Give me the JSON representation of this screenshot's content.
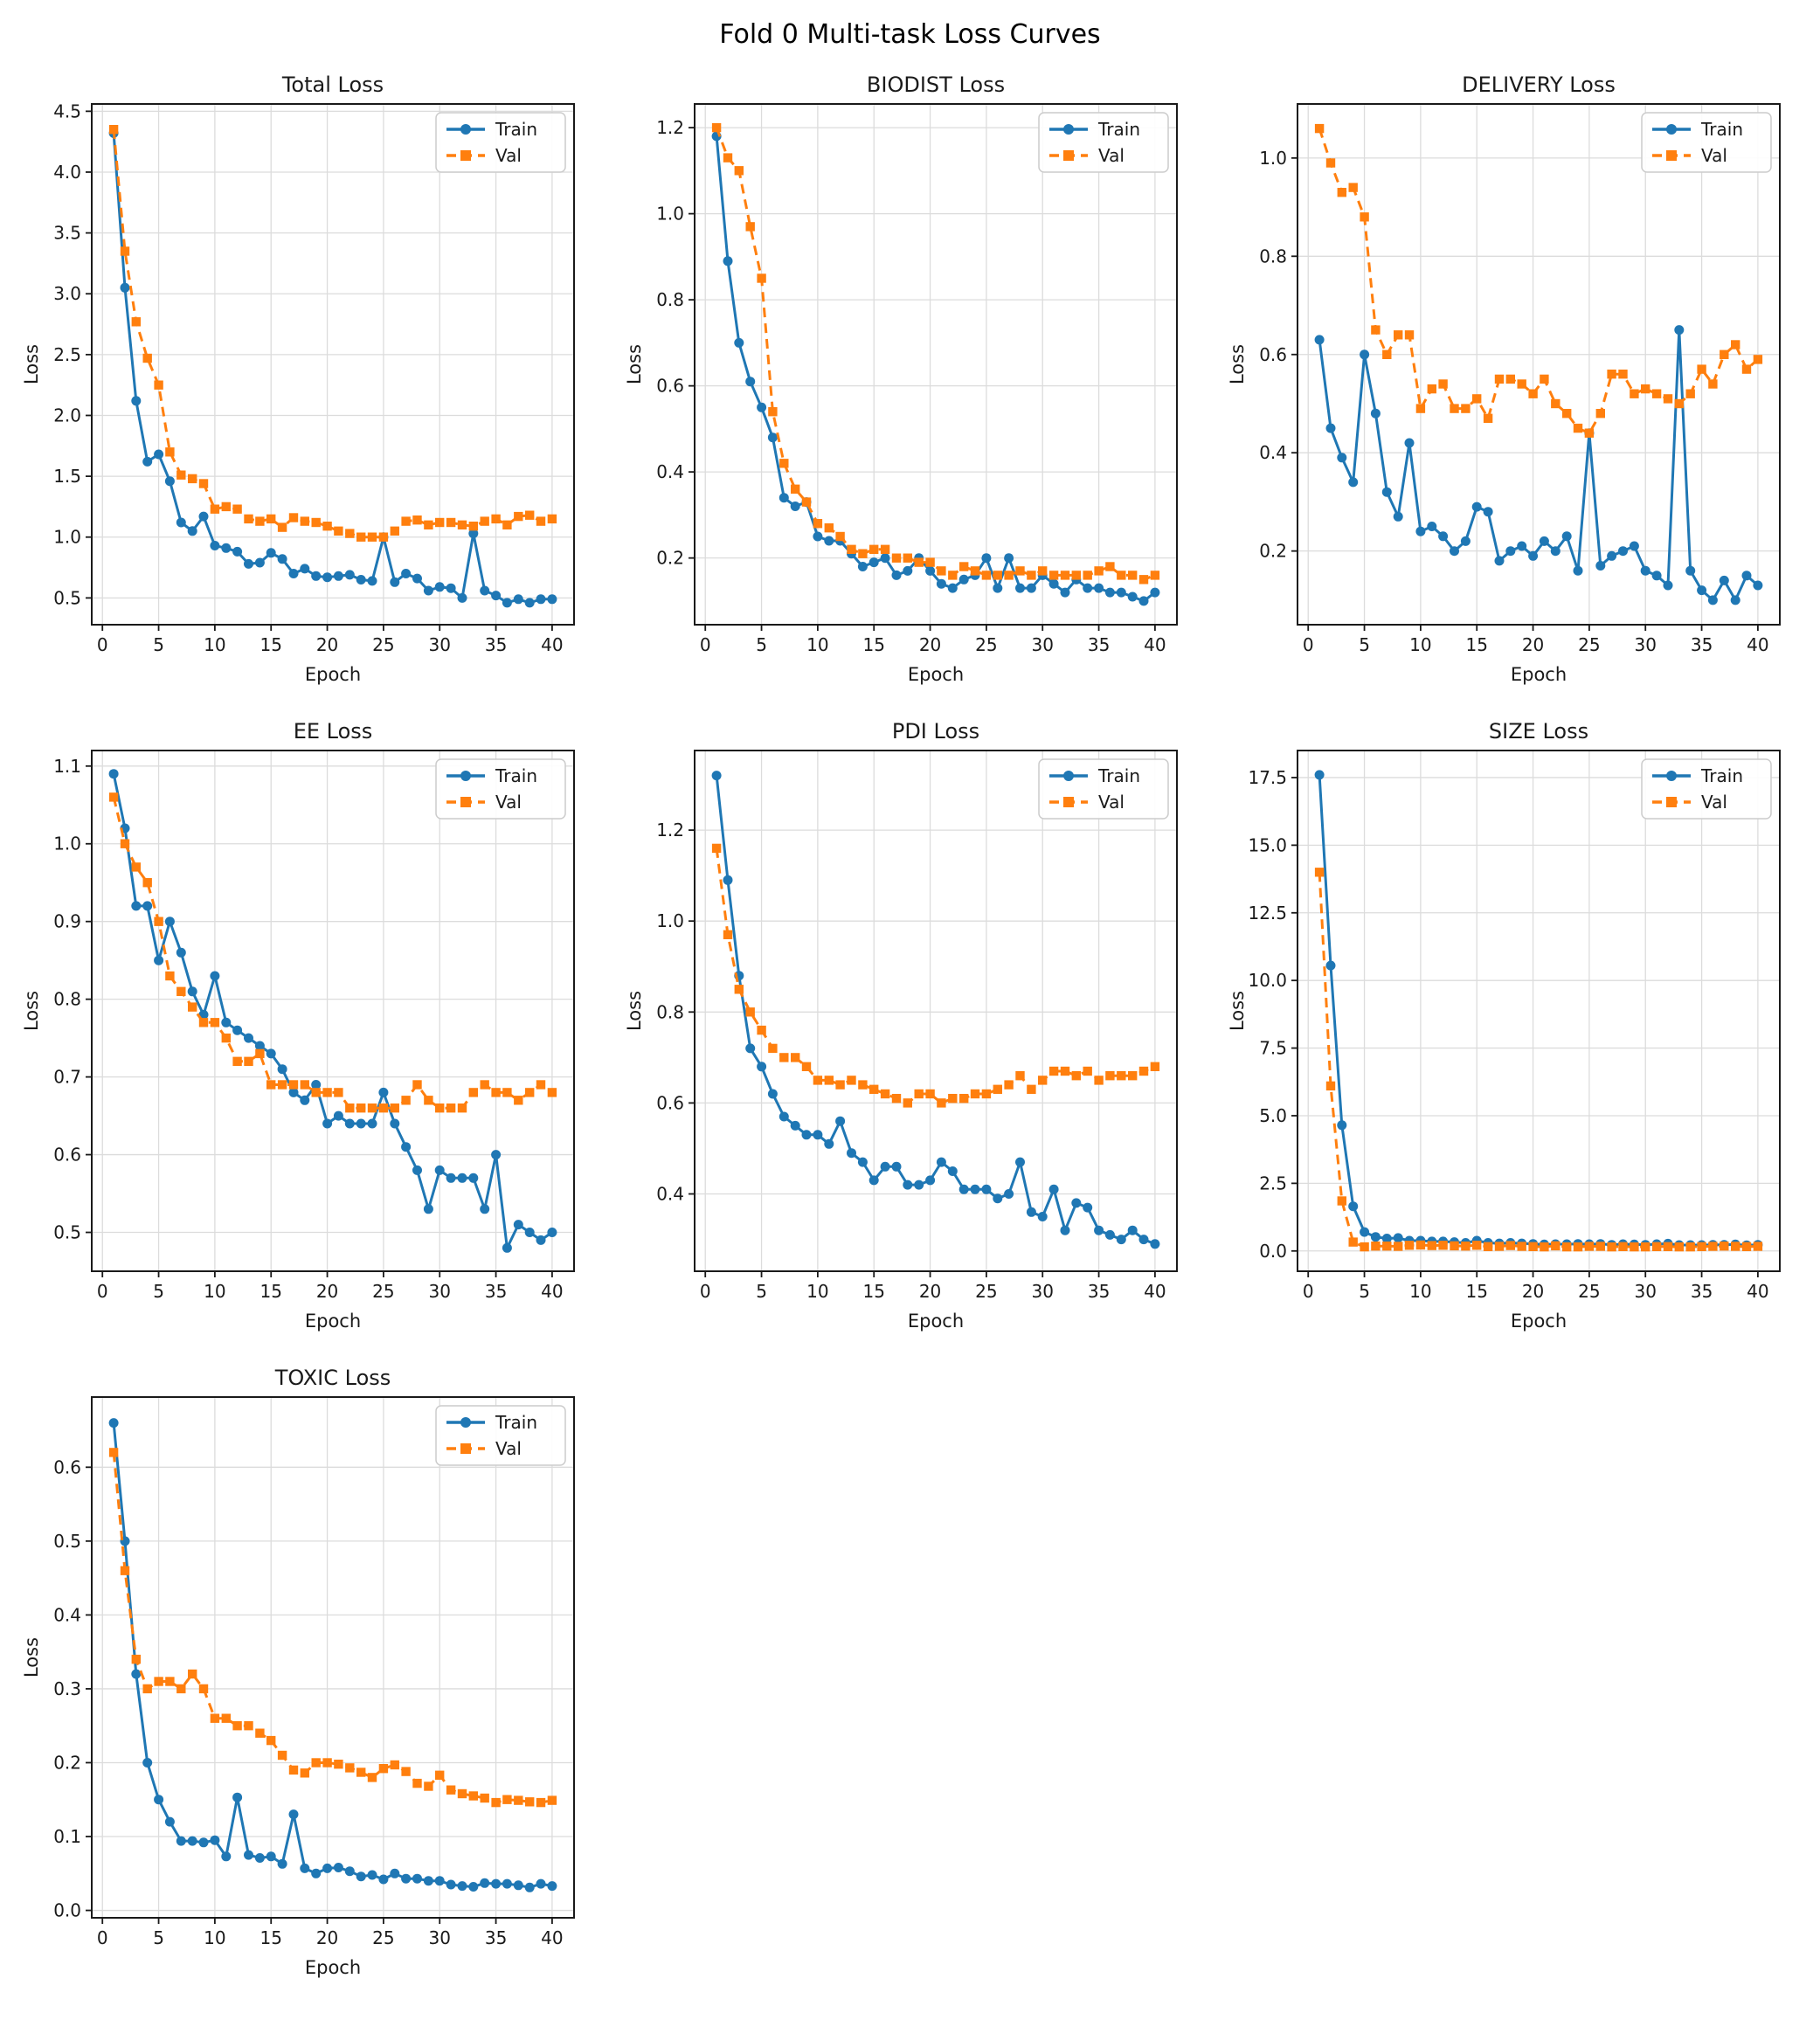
{
  "page_title": "Fold 0 Multi-task Loss Curves",
  "legend": {
    "train": "Train",
    "val": "Val"
  },
  "colors": {
    "train": "#1f77b4",
    "val": "#ff7f0e",
    "grid": "#dcdcdc",
    "spine": "#1a1a1a",
    "legend_border": "#cccccc",
    "background": "#ffffff"
  },
  "axis_shared": {
    "xlabel": "Epoch",
    "ylabel": "Loss",
    "xticks": [
      0,
      5,
      10,
      15,
      20,
      25,
      30,
      35,
      40
    ],
    "xtick_labels": [
      "0",
      "5",
      "10",
      "15",
      "20",
      "25",
      "30",
      "35",
      "40"
    ],
    "xlim": [
      -0.95,
      41.95
    ],
    "legend_position": "upper right",
    "grid": true
  },
  "epochs": [
    1,
    2,
    3,
    4,
    5,
    6,
    7,
    8,
    9,
    10,
    11,
    12,
    13,
    14,
    15,
    16,
    17,
    18,
    19,
    20,
    21,
    22,
    23,
    24,
    25,
    26,
    27,
    28,
    29,
    30,
    31,
    32,
    33,
    34,
    35,
    36,
    37,
    38,
    39,
    40
  ],
  "chart_data": [
    {
      "type": "line",
      "title": "Total Loss",
      "xlabel": "Epoch",
      "ylabel": "Loss",
      "ylim": [
        0.28,
        4.56
      ],
      "yticks": [
        0.5,
        1.0,
        1.5,
        2.0,
        2.5,
        3.0,
        3.5,
        4.0,
        4.5
      ],
      "ytick_labels": [
        "0.5",
        "1.0",
        "1.5",
        "2.0",
        "2.5",
        "3.0",
        "3.5",
        "4.0",
        "4.5"
      ],
      "series": [
        {
          "name": "Train",
          "values": [
            4.32,
            3.05,
            2.12,
            1.62,
            1.68,
            1.46,
            1.12,
            1.05,
            1.17,
            0.93,
            0.91,
            0.88,
            0.78,
            0.79,
            0.87,
            0.82,
            0.7,
            0.74,
            0.68,
            0.67,
            0.68,
            0.69,
            0.65,
            0.64,
            1.0,
            0.63,
            0.7,
            0.66,
            0.56,
            0.59,
            0.58,
            0.5,
            1.03,
            0.56,
            0.52,
            0.46,
            0.49,
            0.46,
            0.49,
            0.49
          ]
        },
        {
          "name": "Val",
          "values": [
            4.35,
            3.35,
            2.77,
            2.47,
            2.25,
            1.7,
            1.51,
            1.48,
            1.44,
            1.23,
            1.25,
            1.23,
            1.15,
            1.13,
            1.15,
            1.08,
            1.16,
            1.13,
            1.12,
            1.09,
            1.05,
            1.03,
            1.0,
            1.0,
            1.0,
            1.05,
            1.13,
            1.14,
            1.1,
            1.12,
            1.12,
            1.1,
            1.09,
            1.13,
            1.15,
            1.1,
            1.17,
            1.18,
            1.13,
            1.15
          ]
        }
      ]
    },
    {
      "type": "line",
      "title": "BIODIST Loss",
      "xlabel": "Epoch",
      "ylabel": "Loss",
      "ylim": [
        0.045,
        1.255
      ],
      "yticks": [
        0.2,
        0.4,
        0.6,
        0.8,
        1.0,
        1.2
      ],
      "ytick_labels": [
        "0.2",
        "0.4",
        "0.6",
        "0.8",
        "1.0",
        "1.2"
      ],
      "series": [
        {
          "name": "Train",
          "values": [
            1.18,
            0.89,
            0.7,
            0.61,
            0.55,
            0.48,
            0.34,
            0.32,
            0.33,
            0.25,
            0.24,
            0.24,
            0.21,
            0.18,
            0.19,
            0.2,
            0.16,
            0.17,
            0.2,
            0.17,
            0.14,
            0.13,
            0.15,
            0.16,
            0.2,
            0.13,
            0.2,
            0.13,
            0.13,
            0.16,
            0.14,
            0.12,
            0.15,
            0.13,
            0.13,
            0.12,
            0.12,
            0.11,
            0.1,
            0.12
          ]
        },
        {
          "name": "Val",
          "values": [
            1.2,
            1.13,
            1.1,
            0.97,
            0.85,
            0.54,
            0.42,
            0.36,
            0.33,
            0.28,
            0.27,
            0.25,
            0.22,
            0.21,
            0.22,
            0.22,
            0.2,
            0.2,
            0.19,
            0.19,
            0.17,
            0.16,
            0.18,
            0.17,
            0.16,
            0.16,
            0.16,
            0.17,
            0.16,
            0.17,
            0.16,
            0.16,
            0.16,
            0.16,
            0.17,
            0.18,
            0.16,
            0.16,
            0.15,
            0.16
          ]
        }
      ]
    },
    {
      "type": "line",
      "title": "DELIVERY Loss",
      "xlabel": "Epoch",
      "ylabel": "Loss",
      "ylim": [
        0.05,
        1.11
      ],
      "yticks": [
        0.2,
        0.4,
        0.6,
        0.8,
        1.0
      ],
      "ytick_labels": [
        "0.2",
        "0.4",
        "0.6",
        "0.8",
        "1.0"
      ],
      "series": [
        {
          "name": "Train",
          "values": [
            0.63,
            0.45,
            0.39,
            0.34,
            0.6,
            0.48,
            0.32,
            0.27,
            0.42,
            0.24,
            0.25,
            0.23,
            0.2,
            0.22,
            0.29,
            0.28,
            0.18,
            0.2,
            0.21,
            0.19,
            0.22,
            0.2,
            0.23,
            0.16,
            0.44,
            0.17,
            0.19,
            0.2,
            0.21,
            0.16,
            0.15,
            0.13,
            0.65,
            0.16,
            0.12,
            0.1,
            0.14,
            0.1,
            0.15,
            0.13
          ]
        },
        {
          "name": "Val",
          "values": [
            1.06,
            0.99,
            0.93,
            0.94,
            0.88,
            0.65,
            0.6,
            0.64,
            0.64,
            0.49,
            0.53,
            0.54,
            0.49,
            0.49,
            0.51,
            0.47,
            0.55,
            0.55,
            0.54,
            0.52,
            0.55,
            0.5,
            0.48,
            0.45,
            0.44,
            0.48,
            0.56,
            0.56,
            0.52,
            0.53,
            0.52,
            0.51,
            0.5,
            0.52,
            0.57,
            0.54,
            0.6,
            0.62,
            0.57,
            0.59
          ]
        }
      ]
    },
    {
      "type": "line",
      "title": "EE Loss",
      "xlabel": "Epoch",
      "ylabel": "Loss",
      "ylim": [
        0.45,
        1.12
      ],
      "yticks": [
        0.5,
        0.6,
        0.7,
        0.8,
        0.9,
        1.0,
        1.1
      ],
      "ytick_labels": [
        "0.5",
        "0.6",
        "0.7",
        "0.8",
        "0.9",
        "1.0",
        "1.1"
      ],
      "series": [
        {
          "name": "Train",
          "values": [
            1.09,
            1.02,
            0.92,
            0.92,
            0.85,
            0.9,
            0.86,
            0.81,
            0.78,
            0.83,
            0.77,
            0.76,
            0.75,
            0.74,
            0.73,
            0.71,
            0.68,
            0.67,
            0.69,
            0.64,
            0.65,
            0.64,
            0.64,
            0.64,
            0.68,
            0.64,
            0.61,
            0.58,
            0.53,
            0.58,
            0.57,
            0.57,
            0.57,
            0.53,
            0.6,
            0.48,
            0.51,
            0.5,
            0.49,
            0.5
          ]
        },
        {
          "name": "Val",
          "values": [
            1.06,
            1.0,
            0.97,
            0.95,
            0.9,
            0.83,
            0.81,
            0.79,
            0.77,
            0.77,
            0.75,
            0.72,
            0.72,
            0.73,
            0.69,
            0.69,
            0.69,
            0.69,
            0.68,
            0.68,
            0.68,
            0.66,
            0.66,
            0.66,
            0.66,
            0.66,
            0.67,
            0.69,
            0.67,
            0.66,
            0.66,
            0.66,
            0.68,
            0.69,
            0.68,
            0.68,
            0.67,
            0.68,
            0.69,
            0.68
          ]
        }
      ]
    },
    {
      "type": "line",
      "title": "PDI Loss",
      "xlabel": "Epoch",
      "ylabel": "Loss",
      "ylim": [
        0.23,
        1.375
      ],
      "yticks": [
        0.4,
        0.6,
        0.8,
        1.0,
        1.2
      ],
      "ytick_labels": [
        "0.4",
        "0.6",
        "0.8",
        "1.0",
        "1.2"
      ],
      "series": [
        {
          "name": "Train",
          "values": [
            1.32,
            1.09,
            0.88,
            0.72,
            0.68,
            0.62,
            0.57,
            0.55,
            0.53,
            0.53,
            0.51,
            0.56,
            0.49,
            0.47,
            0.43,
            0.46,
            0.46,
            0.42,
            0.42,
            0.43,
            0.47,
            0.45,
            0.41,
            0.41,
            0.41,
            0.39,
            0.4,
            0.47,
            0.36,
            0.35,
            0.41,
            0.32,
            0.38,
            0.37,
            0.32,
            0.31,
            0.3,
            0.32,
            0.3,
            0.29
          ]
        },
        {
          "name": "Val",
          "values": [
            1.16,
            0.97,
            0.85,
            0.8,
            0.76,
            0.72,
            0.7,
            0.7,
            0.68,
            0.65,
            0.65,
            0.64,
            0.65,
            0.64,
            0.63,
            0.62,
            0.61,
            0.6,
            0.62,
            0.62,
            0.6,
            0.61,
            0.61,
            0.62,
            0.62,
            0.63,
            0.64,
            0.66,
            0.63,
            0.65,
            0.67,
            0.67,
            0.66,
            0.67,
            0.65,
            0.66,
            0.66,
            0.66,
            0.67,
            0.68
          ]
        }
      ]
    },
    {
      "type": "line",
      "title": "SIZE Loss",
      "xlabel": "Epoch",
      "ylabel": "Loss",
      "ylim": [
        -0.75,
        18.5
      ],
      "yticks": [
        0.0,
        2.5,
        5.0,
        7.5,
        10.0,
        12.5,
        15.0,
        17.5
      ],
      "ytick_labels": [
        "0.0",
        "2.5",
        "5.0",
        "7.5",
        "10.0",
        "12.5",
        "15.0",
        "17.5"
      ],
      "series": [
        {
          "name": "Train",
          "values": [
            17.6,
            10.55,
            4.65,
            1.65,
            0.7,
            0.52,
            0.46,
            0.48,
            0.38,
            0.38,
            0.35,
            0.35,
            0.33,
            0.3,
            0.38,
            0.3,
            0.28,
            0.3,
            0.28,
            0.26,
            0.24,
            0.25,
            0.25,
            0.26,
            0.25,
            0.26,
            0.23,
            0.25,
            0.24,
            0.23,
            0.25,
            0.27,
            0.22,
            0.22,
            0.22,
            0.23,
            0.23,
            0.24,
            0.21,
            0.23
          ]
        },
        {
          "name": "Val",
          "values": [
            14.0,
            6.1,
            1.85,
            0.33,
            0.15,
            0.18,
            0.18,
            0.17,
            0.21,
            0.22,
            0.2,
            0.21,
            0.19,
            0.18,
            0.21,
            0.16,
            0.17,
            0.2,
            0.17,
            0.16,
            0.15,
            0.19,
            0.15,
            0.15,
            0.17,
            0.17,
            0.15,
            0.16,
            0.15,
            0.15,
            0.16,
            0.16,
            0.15,
            0.15,
            0.16,
            0.17,
            0.18,
            0.17,
            0.16,
            0.17
          ]
        }
      ]
    },
    {
      "type": "line",
      "title": "TOXIC Loss",
      "xlabel": "Epoch",
      "ylabel": "Loss",
      "ylim": [
        -0.01,
        0.695
      ],
      "yticks": [
        0.0,
        0.1,
        0.2,
        0.3,
        0.4,
        0.5,
        0.6
      ],
      "ytick_labels": [
        "0.0",
        "0.1",
        "0.2",
        "0.3",
        "0.4",
        "0.5",
        "0.6"
      ],
      "series": [
        {
          "name": "Train",
          "values": [
            0.66,
            0.5,
            0.32,
            0.2,
            0.15,
            0.12,
            0.094,
            0.094,
            0.092,
            0.095,
            0.073,
            0.153,
            0.075,
            0.071,
            0.073,
            0.063,
            0.13,
            0.057,
            0.05,
            0.057,
            0.058,
            0.053,
            0.046,
            0.048,
            0.042,
            0.05,
            0.043,
            0.043,
            0.04,
            0.04,
            0.035,
            0.033,
            0.032,
            0.037,
            0.036,
            0.036,
            0.034,
            0.031,
            0.036,
            0.033
          ]
        },
        {
          "name": "Val",
          "values": [
            0.62,
            0.46,
            0.34,
            0.3,
            0.31,
            0.31,
            0.3,
            0.32,
            0.3,
            0.26,
            0.26,
            0.25,
            0.25,
            0.24,
            0.23,
            0.21,
            0.19,
            0.186,
            0.2,
            0.2,
            0.198,
            0.193,
            0.187,
            0.18,
            0.192,
            0.197,
            0.188,
            0.172,
            0.168,
            0.183,
            0.163,
            0.158,
            0.155,
            0.152,
            0.146,
            0.15,
            0.149,
            0.147,
            0.146,
            0.149
          ]
        }
      ]
    }
  ]
}
